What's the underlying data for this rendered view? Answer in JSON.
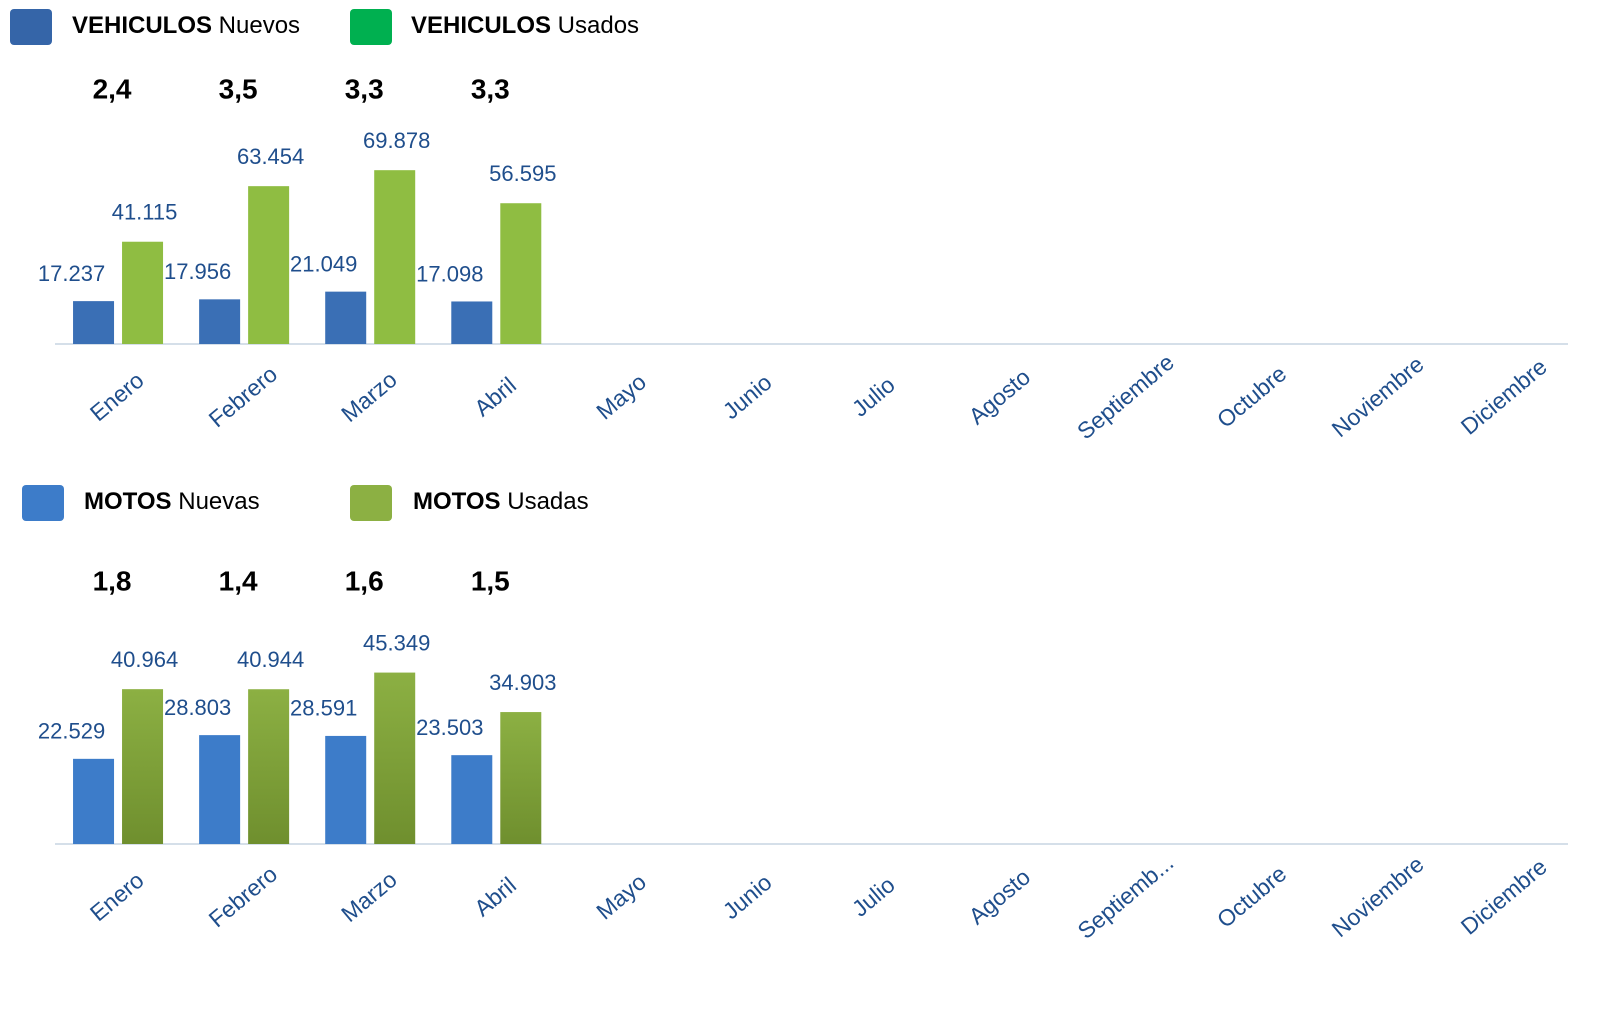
{
  "chart_data": [
    {
      "type": "bar",
      "categories": [
        "Enero",
        "Febrero",
        "Marzo",
        "Abril",
        "Mayo",
        "Junio",
        "Julio",
        "Agosto",
        "Septiembre",
        "Octubre",
        "Noviembre",
        "Diciembre"
      ],
      "ylim": [
        0,
        80000
      ],
      "ratio_labels": [
        "2,4",
        "3,5",
        "3,3",
        "3,3",
        null,
        null,
        null,
        null,
        null,
        null,
        null,
        null
      ],
      "series": [
        {
          "name": "VEHICULOS Nuevos",
          "color": "#3a6fb5",
          "legend_color": "#3565a8",
          "values": [
            17237,
            17956,
            21049,
            17098,
            null,
            null,
            null,
            null,
            null,
            null,
            null,
            null
          ],
          "value_labels": [
            "17.237",
            "17.956",
            "21.049",
            "17.098",
            null,
            null,
            null,
            null,
            null,
            null,
            null,
            null
          ]
        },
        {
          "name": "VEHICULOS Usados",
          "color": "#8fbd42",
          "legend_color": "#00b050",
          "values": [
            41115,
            63454,
            69878,
            56595,
            null,
            null,
            null,
            null,
            null,
            null,
            null,
            null
          ],
          "value_labels": [
            "41.115",
            "63.454",
            "69.878",
            "56.595",
            null,
            null,
            null,
            null,
            null,
            null,
            null,
            null
          ]
        }
      ]
    },
    {
      "type": "bar",
      "categories": [
        "Enero",
        "Febrero",
        "Marzo",
        "Abril",
        "Mayo",
        "Junio",
        "Julio",
        "Agosto",
        "Septiemb...",
        "Octubre",
        "Noviembre",
        "Diciembre"
      ],
      "ylim": [
        0,
        50000
      ],
      "ratio_labels": [
        "1,8",
        "1,4",
        "1,6",
        "1,5",
        null,
        null,
        null,
        null,
        null,
        null,
        null,
        null
      ],
      "series": [
        {
          "name": "MOTOS Nuevas",
          "color": "#3d7cc9",
          "legend_color": "#3d7cc9",
          "values": [
            22529,
            28803,
            28591,
            23503,
            null,
            null,
            null,
            null,
            null,
            null,
            null,
            null
          ],
          "value_labels": [
            "22.529",
            "28.803",
            "28.591",
            "23.503",
            null,
            null,
            null,
            null,
            null,
            null,
            null,
            null
          ]
        },
        {
          "name": "MOTOS Usadas",
          "color": "#8cb043",
          "legend_color": "#8cb043",
          "values": [
            40964,
            40944,
            45349,
            34903,
            null,
            null,
            null,
            null,
            null,
            null,
            null,
            null
          ],
          "value_labels": [
            "40.964",
            "40.944",
            "45.349",
            "34.903",
            null,
            null,
            null,
            null,
            null,
            null,
            null,
            null
          ]
        }
      ]
    }
  ]
}
